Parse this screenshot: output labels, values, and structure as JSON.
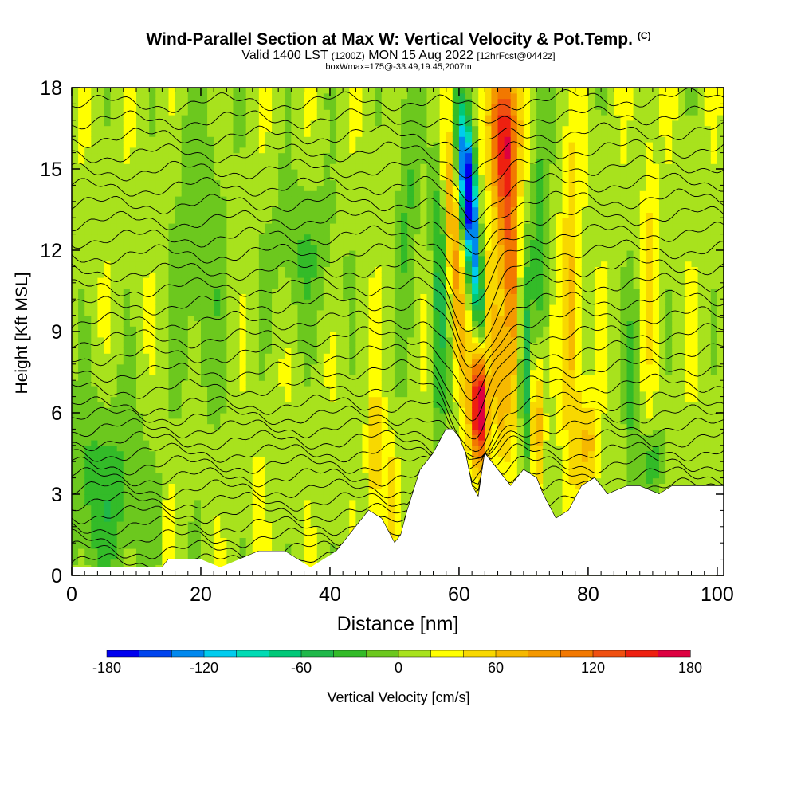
{
  "title": {
    "main": "Wind-Parallel Section at Max W: Vertical Velocity & Pot.Temp.",
    "copyright": "(C)",
    "valid_prefix": "Valid 1400 LST",
    "valid_utc": "(1200Z)",
    "valid_date": "MON 15 Aug 2022",
    "forecast": "[12hrFcst@0442z]",
    "box_info": "boxWmax=175@-33.49,19.45,2007m"
  },
  "chart_data": {
    "type": "heatmap",
    "xlabel": "Distance [nm]",
    "ylabel": "Height [Kft MSL]",
    "xlim": [
      0,
      101
    ],
    "ylim": [
      0,
      18
    ],
    "x_ticks": [
      "0",
      "20",
      "40",
      "60",
      "80",
      "100"
    ],
    "y_ticks": [
      "0",
      "3",
      "6",
      "9",
      "12",
      "15",
      "18"
    ],
    "colorbar": {
      "label": "Vertical Velocity [cm/s]",
      "range": [
        -200,
        200
      ],
      "step": 20,
      "tick_labels": [
        "-180",
        "-120",
        "-60",
        "0",
        "60",
        "120",
        "180"
      ],
      "colors": [
        "#0000ee",
        "#0044ee",
        "#0088ee",
        "#00ccee",
        "#00dbb4",
        "#00c878",
        "#1fb84a",
        "#33bb28",
        "#6cc81e",
        "#a8e21d",
        "#ffff00",
        "#f8d800",
        "#f6b800",
        "#f49800",
        "#f27800",
        "#f05010",
        "#ee2010",
        "#dd0040"
      ]
    },
    "terrain_kft": [
      [
        0,
        0.3
      ],
      [
        10,
        0.3
      ],
      [
        14,
        0.3
      ],
      [
        15,
        0.6
      ],
      [
        20,
        0.6
      ],
      [
        23,
        0.3
      ],
      [
        29,
        0.9
      ],
      [
        33,
        0.9
      ],
      [
        35,
        0.6
      ],
      [
        37,
        0.3
      ],
      [
        39,
        0.6
      ],
      [
        41,
        0.9
      ],
      [
        42,
        1.2
      ],
      [
        43,
        1.5
      ],
      [
        45,
        2.1
      ],
      [
        46,
        2.4
      ],
      [
        48,
        2.1
      ],
      [
        50,
        1.2
      ],
      [
        51,
        1.5
      ],
      [
        52,
        2.4
      ],
      [
        54,
        3.9
      ],
      [
        56,
        4.5
      ],
      [
        58,
        5.4
      ],
      [
        59,
        5.4
      ],
      [
        60,
        5.1
      ],
      [
        61,
        4.5
      ],
      [
        62,
        3.3
      ],
      [
        63,
        2.9
      ],
      [
        64,
        4.5
      ],
      [
        65,
        4.2
      ],
      [
        67,
        3.6
      ],
      [
        68,
        3.3
      ],
      [
        70,
        3.9
      ],
      [
        72,
        3.6
      ],
      [
        73,
        3.0
      ],
      [
        75,
        2.1
      ],
      [
        77,
        2.4
      ],
      [
        79,
        3.3
      ],
      [
        81,
        3.6
      ],
      [
        83,
        3.0
      ],
      [
        86,
        3.3
      ],
      [
        88,
        3.3
      ],
      [
        91,
        3.0
      ],
      [
        93,
        3.3
      ],
      [
        101,
        3.3
      ]
    ],
    "vertical_velocity_features": [
      {
        "x": 62.3,
        "z": 12.0,
        "peak": -180,
        "sigma_x": 0.9,
        "sigma_z": 2.8,
        "tilt": -0.42
      },
      {
        "x": 61.5,
        "z": 14.8,
        "peak": -120,
        "sigma_x": 0.9,
        "sigma_z": 1.8,
        "tilt": -0.4
      },
      {
        "x": 63.2,
        "z": 6.3,
        "peak": 190,
        "sigma_x": 0.9,
        "sigma_z": 1.5,
        "tilt": 0
      },
      {
        "x": 64.5,
        "z": 9.5,
        "peak": 95,
        "sigma_x": 1.2,
        "sigma_z": 3.5,
        "tilt": -0.5
      },
      {
        "x": 59.0,
        "z": 12.5,
        "peak": 75,
        "sigma_x": 0.9,
        "sigma_z": 4.0,
        "tilt": -0.3
      },
      {
        "x": 68.0,
        "z": 12.0,
        "peak": 100,
        "sigma_x": 1.4,
        "sigma_z": 4.0,
        "tilt": -0.3
      },
      {
        "x": 67.5,
        "z": 16.5,
        "peak": 110,
        "sigma_x": 1.6,
        "sigma_z": 1.8,
        "tilt": 0
      },
      {
        "x": 70.2,
        "z": 8.0,
        "peak": -110,
        "sigma_x": 0.8,
        "sigma_z": 3.2,
        "tilt": -0.1
      },
      {
        "x": 57.0,
        "z": 11.5,
        "peak": -55,
        "sigma_x": 0.9,
        "sigma_z": 5.0,
        "tilt": 0
      },
      {
        "x": 72.5,
        "z": 13.0,
        "peak": -45,
        "sigma_x": 1.0,
        "sigma_z": 4.5,
        "tilt": 0
      },
      {
        "x": 72.0,
        "z": 6.0,
        "peak": 80,
        "sigma_x": 0.8,
        "sigma_z": 2.0,
        "tilt": 0
      },
      {
        "x": 77.5,
        "z": 9.5,
        "peak": 60,
        "sigma_x": 1.1,
        "sigma_z": 4.5,
        "tilt": 0
      },
      {
        "x": 80.0,
        "z": 4.8,
        "peak": 55,
        "sigma_x": 1.0,
        "sigma_z": 1.2,
        "tilt": 0
      },
      {
        "x": 47.0,
        "z": 4.5,
        "peak": 55,
        "sigma_x": 0.8,
        "sigma_z": 1.6,
        "tilt": 0
      },
      {
        "x": 49.5,
        "z": 3.0,
        "peak": 40,
        "sigma_x": 0.7,
        "sigma_z": 1.5,
        "tilt": 0
      },
      {
        "x": 29.0,
        "z": 2.5,
        "peak": 40,
        "sigma_x": 0.4,
        "sigma_z": 1.5,
        "tilt": 0
      },
      {
        "x": 15.0,
        "z": 2.0,
        "peak": 35,
        "sigma_x": 0.4,
        "sigma_z": 1.3,
        "tilt": 0
      },
      {
        "x": 87.0,
        "z": 7.0,
        "peak": -40,
        "sigma_x": 0.8,
        "sigma_z": 3.0,
        "tilt": 0
      },
      {
        "x": 89.5,
        "z": 12.0,
        "peak": 30,
        "sigma_x": 0.8,
        "sigma_z": 4.0,
        "tilt": 0
      },
      {
        "x": 90.0,
        "z": 4.2,
        "peak": -45,
        "sigma_x": 1.4,
        "sigma_z": 0.9,
        "tilt": 0
      },
      {
        "x": 5.0,
        "z": 3.0,
        "peak": -45,
        "sigma_x": 5.0,
        "sigma_z": 2.5,
        "tilt": 0
      },
      {
        "x": 20.0,
        "z": 12.0,
        "peak": -30,
        "sigma_x": 3.0,
        "sigma_z": 4.5,
        "tilt": 0
      },
      {
        "x": 36.0,
        "z": 12.0,
        "peak": -30,
        "sigma_x": 4.0,
        "sigma_z": 2.0,
        "tilt": 0
      },
      {
        "x": 52.0,
        "z": 14.0,
        "peak": -35,
        "sigma_x": 1.2,
        "sigma_z": 4.0,
        "tilt": 0
      }
    ]
  }
}
